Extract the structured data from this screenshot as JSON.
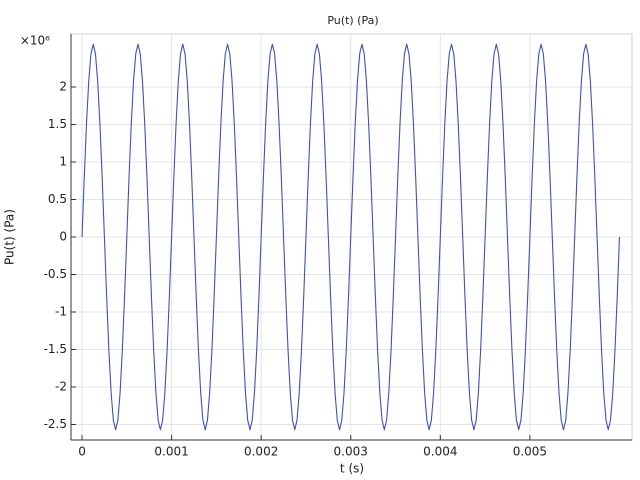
{
  "chart_data": {
    "type": "line",
    "title": "Pu(t) (Pa)",
    "x_label": "t (s)",
    "y_label": "Pu(t) (Pa)",
    "y_multiplier": "×10⁶",
    "color": "#3f51b5",
    "grid": true,
    "xlim": [
      -0.000123,
      0.00614
    ],
    "ylim": [
      -2707000,
      2707000
    ],
    "xticks": [
      0,
      0.001,
      0.002,
      0.003,
      0.004,
      0.005
    ],
    "yticks": [
      {
        "value": -2500000,
        "label": "-2.5"
      },
      {
        "value": -2000000,
        "label": "-2"
      },
      {
        "value": -1500000,
        "label": "-1.5"
      },
      {
        "value": -1000000,
        "label": "-1"
      },
      {
        "value": -500000,
        "label": "-0.5"
      },
      0,
      {
        "value": 500000,
        "label": "0.5"
      },
      {
        "value": 1000000,
        "label": "1"
      },
      {
        "value": 1500000,
        "label": "1.5"
      },
      {
        "value": 2000000,
        "label": "2"
      }
    ],
    "x": [
      0,
      2.5e-05,
      5e-05,
      7.5e-05,
      0.0001,
      0.000125,
      0.00015,
      0.000175,
      0.0002,
      0.000225,
      0.00025,
      0.000275,
      0.0003,
      0.000325,
      0.00035,
      0.000375,
      0.0004,
      0.000425,
      0.00045,
      0.000475,
      0.0005,
      0.000525,
      0.00055,
      0.000575,
      0.0006,
      0.000625,
      0.00065,
      0.000675,
      0.0007,
      0.000725,
      0.00075,
      0.000775,
      0.0008,
      0.000825,
      0.00085,
      0.000875,
      0.0009,
      0.000925,
      0.00095,
      0.000975,
      0.001,
      0.001025,
      0.00105,
      0.001075,
      0.0011,
      0.001125,
      0.00115,
      0.001175,
      0.0012,
      0.001225,
      0.00125,
      0.001275,
      0.0013,
      0.001325,
      0.00135,
      0.001375,
      0.0014,
      0.001425,
      0.00145,
      0.001475,
      0.0015,
      0.001525,
      0.00155,
      0.001575,
      0.0016,
      0.001625,
      0.00165,
      0.001675,
      0.0017,
      0.001725,
      0.00175,
      0.001775,
      0.0018,
      0.001825,
      0.00185,
      0.001875,
      0.0019,
      0.001925,
      0.00195,
      0.001975,
      0.002,
      0.002025,
      0.00205,
      0.002075,
      0.0021,
      0.002125,
      0.00215,
      0.002175,
      0.0022,
      0.002225,
      0.00225,
      0.002275,
      0.0023,
      0.002325,
      0.00235,
      0.002375,
      0.0024,
      0.002425,
      0.00245,
      0.002475,
      0.0025,
      0.002525,
      0.00255,
      0.002575,
      0.0026,
      0.002625,
      0.00265,
      0.002675,
      0.0027,
      0.002725,
      0.00275,
      0.002775,
      0.0028,
      0.002825,
      0.00285,
      0.002875,
      0.0029,
      0.002925,
      0.00295,
      0.002975,
      0.003,
      0.003025,
      0.00305,
      0.003075,
      0.0031,
      0.003125,
      0.00315,
      0.003175,
      0.0032,
      0.003225,
      0.00325,
      0.003275,
      0.0033,
      0.003325,
      0.00335,
      0.003375,
      0.0034,
      0.003425,
      0.00345,
      0.003475,
      0.0035,
      0.003525,
      0.00355,
      0.003575,
      0.0036,
      0.003625,
      0.00365,
      0.003675,
      0.0037,
      0.003725,
      0.00375,
      0.003775,
      0.0038,
      0.003825,
      0.00385,
      0.003875,
      0.0039,
      0.003925,
      0.00395,
      0.003975,
      0.004,
      0.004025,
      0.00405,
      0.004075,
      0.0041,
      0.004125,
      0.00415,
      0.004175,
      0.0042,
      0.004225,
      0.00425,
      0.004275,
      0.0043,
      0.004325,
      0.00435,
      0.004375,
      0.0044,
      0.004425,
      0.00445,
      0.004475,
      0.0045,
      0.004525,
      0.00455,
      0.004575,
      0.0046,
      0.004625,
      0.00465,
      0.004675,
      0.0047,
      0.004725,
      0.00475,
      0.004775,
      0.0048,
      0.004825,
      0.00485,
      0.004875,
      0.0049,
      0.004925,
      0.00495,
      0.004975,
      0.005,
      0.005025,
      0.00505,
      0.005075,
      0.0051,
      0.005125,
      0.00515,
      0.005175,
      0.0052,
      0.005225,
      0.00525,
      0.005275,
      0.0053,
      0.005325,
      0.00535,
      0.005375,
      0.0054,
      0.005425,
      0.00545,
      0.005475,
      0.0055,
      0.005525,
      0.00555,
      0.005575,
      0.0056,
      0.005625,
      0.00565,
      0.005675,
      0.0057,
      0.005725,
      0.00575,
      0.005775,
      0.0058,
      0.005825,
      0.00585,
      0.005875,
      0.0059,
      0.005925,
      0.00595,
      0.005975,
      0.006
    ],
    "values": [
      0,
      794174,
      1510608,
      2079174,
      2444216,
      2570000,
      2444216,
      2079174,
      1510608,
      794174,
      0,
      -794174,
      -1510608,
      -2079174,
      -2444216,
      -2570000,
      -2444216,
      -2079174,
      -1510608,
      -794174,
      0,
      794174,
      1510608,
      2079174,
      2444216,
      2570000,
      2444216,
      2079174,
      1510608,
      794174,
      0,
      -794174,
      -1510608,
      -2079174,
      -2444216,
      -2570000,
      -2444216,
      -2079174,
      -1510608,
      -794174,
      0,
      794174,
      1510608,
      2079174,
      2444216,
      2570000,
      2444216,
      2079174,
      1510608,
      794174,
      0,
      -794174,
      -1510608,
      -2079174,
      -2444216,
      -2570000,
      -2444216,
      -2079174,
      -1510608,
      -794174,
      0,
      794174,
      1510608,
      2079174,
      2444216,
      2570000,
      2444216,
      2079174,
      1510608,
      794174,
      0,
      -794174,
      -1510608,
      -2079174,
      -2444216,
      -2570000,
      -2444216,
      -2079174,
      -1510608,
      -794174,
      0,
      794174,
      1510608,
      2079174,
      2444216,
      2570000,
      2444216,
      2079174,
      1510608,
      794174,
      0,
      -794174,
      -1510608,
      -2079174,
      -2444216,
      -2570000,
      -2444216,
      -2079174,
      -1510608,
      -794174,
      0,
      794174,
      1510608,
      2079174,
      2444216,
      2570000,
      2444216,
      2079174,
      1510608,
      794174,
      0,
      -794174,
      -1510608,
      -2079174,
      -2444216,
      -2570000,
      -2444216,
      -2079174,
      -1510608,
      -794174,
      0,
      794174,
      1510608,
      2079174,
      2444216,
      2570000,
      2444216,
      2079174,
      1510608,
      794174,
      0,
      -794174,
      -1510608,
      -2079174,
      -2444216,
      -2570000,
      -2444216,
      -2079174,
      -1510608,
      -794174,
      0,
      794174,
      1510608,
      2079174,
      2444216,
      2570000,
      2444216,
      2079174,
      1510608,
      794174,
      0,
      -794174,
      -1510608,
      -2079174,
      -2444216,
      -2570000,
      -2444216,
      -2079174,
      -1510608,
      -794174,
      0,
      794174,
      1510608,
      2079174,
      2444216,
      2570000,
      2444216,
      2079174,
      1510608,
      794174,
      0,
      -794174,
      -1510608,
      -2079174,
      -2444216,
      -2570000,
      -2444216,
      -2079174,
      -1510608,
      -794174,
      0,
      794174,
      1510608,
      2079174,
      2444216,
      2570000,
      2444216,
      2079174,
      1510608,
      794174,
      0,
      -794174,
      -1510608,
      -2079174,
      -2444216,
      -2570000,
      -2444216,
      -2079174,
      -1510608,
      -794174,
      0,
      794174,
      1510608,
      2079174,
      2444216,
      2570000,
      2444216,
      2079174,
      1510608,
      794174,
      0,
      -794174,
      -1510608,
      -2079174,
      -2444216,
      -2570000,
      -2444216,
      -2079174,
      -1510608,
      -794174,
      0,
      794174,
      1510608,
      2079174,
      2444216,
      2570000,
      2444216,
      2079174,
      1510608,
      794174,
      0,
      -794174,
      -1510608,
      -2079174,
      -2444216,
      -2570000,
      -2444216,
      -2079174,
      -1510608,
      -794174,
      0
    ]
  }
}
